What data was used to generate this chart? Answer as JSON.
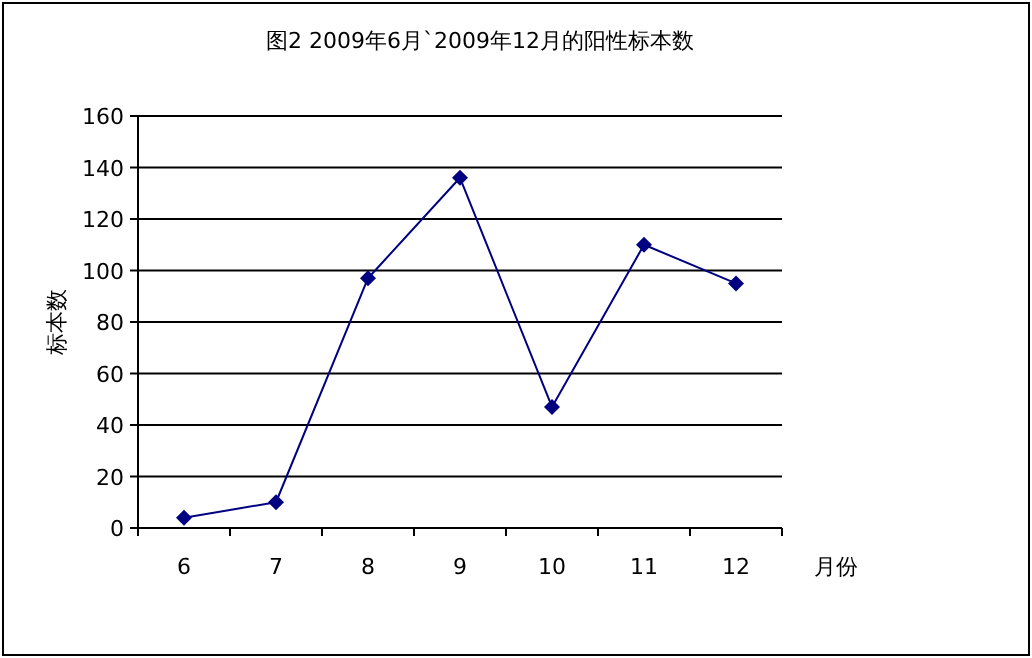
{
  "chart_data": {
    "type": "line",
    "title": "图2  2009年6月`2009年12月的阳性标本数",
    "xlabel": "月份",
    "ylabel": "标本数",
    "categories": [
      "6",
      "7",
      "8",
      "9",
      "10",
      "11",
      "12"
    ],
    "series": [
      {
        "color": "#000080",
        "values": [
          4,
          10,
          97,
          136,
          47,
          110,
          95
        ]
      }
    ],
    "ylim": [
      0,
      160
    ],
    "yticks": [
      0,
      20,
      40,
      60,
      80,
      100,
      120,
      140,
      160
    ],
    "grid": "y",
    "marker": "diamond",
    "line_style": "solid"
  }
}
